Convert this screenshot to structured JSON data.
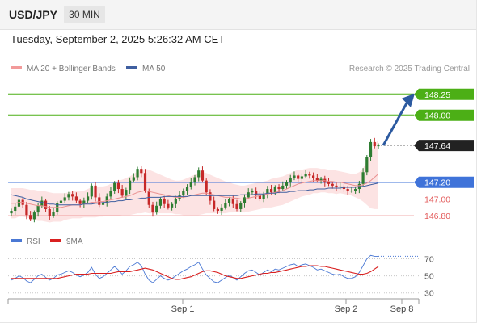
{
  "header": {
    "symbol": "USD/JPY",
    "interval": "30 MIN"
  },
  "timestamp": "Tuesday, September 2, 2025 5:26:32 AM CET",
  "legend": {
    "bollinger": "MA 20 + Bollinger Bands",
    "ma50": "MA 50",
    "credit": "Research © 2025 Trading Central"
  },
  "rsi_legend": {
    "rsi": "RSI",
    "ma": "9MA"
  },
  "colors": {
    "up": "#2e7d32",
    "down": "#c62828",
    "green_level": "#4caf16",
    "blue_level": "#3f73d9",
    "red_level": "#e35a5a",
    "band": "#fbdada",
    "ma50": "#3f5fa0",
    "ma20": "#e98f8f",
    "rsi": "#4a78d4",
    "rsi_ma": "#d92020",
    "current": "#222222",
    "arrow": "#2c5aa0"
  },
  "chart_data": [
    {
      "type": "candlestick",
      "title": "USD/JPY",
      "ylim": [
        146.6,
        148.45
      ],
      "x_ticks": [
        "Sep 1",
        "Sep 2",
        "Sep 8"
      ],
      "price_levels": [
        {
          "label": "148.25",
          "value": 148.25,
          "kind": "resistance"
        },
        {
          "label": "148.00",
          "value": 148.0,
          "kind": "resistance"
        },
        {
          "label": "147.64",
          "value": 147.64,
          "kind": "current"
        },
        {
          "label": "147.20",
          "value": 147.2,
          "kind": "pivot"
        },
        {
          "label": "147.00",
          "value": 147.0,
          "kind": "support"
        },
        {
          "label": "146.80",
          "value": 146.8,
          "kind": "support"
        }
      ],
      "closes": [
        146.86,
        146.91,
        146.99,
        146.93,
        146.81,
        146.76,
        146.84,
        146.92,
        146.98,
        146.88,
        146.8,
        146.85,
        146.95,
        146.98,
        147.02,
        147.06,
        147.03,
        146.98,
        146.94,
        146.98,
        147.03,
        147.16,
        147.02,
        146.93,
        146.96,
        147.03,
        147.1,
        147.19,
        147.12,
        147.04,
        147.11,
        147.22,
        147.26,
        147.36,
        147.31,
        147.1,
        146.93,
        146.84,
        146.92,
        147.0,
        146.94,
        146.9,
        146.94,
        147.0,
        147.05,
        147.1,
        147.14,
        147.2,
        147.26,
        147.34,
        147.22,
        147.08,
        146.98,
        146.88,
        146.86,
        146.9,
        146.95,
        147.0,
        146.94,
        146.88,
        146.95,
        147.02,
        147.08,
        147.1,
        147.05,
        147.0,
        147.06,
        147.12,
        147.08,
        147.14,
        147.12,
        147.16,
        147.2,
        147.25,
        147.28,
        147.24,
        147.27,
        147.3,
        147.28,
        147.25,
        147.22,
        147.24,
        147.2,
        147.18,
        147.16,
        147.14,
        147.15,
        147.12,
        147.1,
        147.1,
        147.12,
        147.18,
        147.32,
        147.5,
        147.68,
        147.63,
        147.64
      ],
      "ma20": [
        146.95,
        146.95,
        146.96,
        146.96,
        146.95,
        146.94,
        146.93,
        146.92,
        146.92,
        146.91,
        146.9,
        146.9,
        146.9,
        146.9,
        146.91,
        146.92,
        146.93,
        146.93,
        146.93,
        146.94,
        146.95,
        146.96,
        146.96,
        146.97,
        146.97,
        146.98,
        146.99,
        147.0,
        147.01,
        147.02,
        147.03,
        147.04,
        147.06,
        147.08,
        147.09,
        147.1,
        147.09,
        147.08,
        147.07,
        147.06,
        147.05,
        147.04,
        147.03,
        147.02,
        147.02,
        147.02,
        147.03,
        147.04,
        147.05,
        147.06,
        147.07,
        147.07,
        147.06,
        147.05,
        147.04,
        147.03,
        147.02,
        147.02,
        147.01,
        147.01,
        147.0,
        147.0,
        147.01,
        147.02,
        147.03,
        147.04,
        147.05,
        147.06,
        147.07,
        147.08,
        147.09,
        147.1,
        147.12,
        147.14,
        147.16,
        147.18,
        147.19,
        147.2,
        147.21,
        147.22,
        147.22,
        147.22,
        147.22,
        147.21,
        147.21,
        147.2,
        147.2,
        147.19,
        147.18,
        147.17,
        147.16,
        147.16,
        147.17,
        147.19,
        147.22,
        147.26,
        147.3
      ],
      "ma50": [
        147.05,
        147.04,
        147.03,
        147.02,
        147.0,
        146.99,
        146.98,
        146.97,
        146.96,
        146.95,
        146.94,
        146.94,
        146.93,
        146.93,
        146.93,
        146.93,
        146.93,
        146.93,
        146.93,
        146.94,
        146.94,
        146.94,
        146.95,
        146.95,
        146.96,
        146.96,
        146.97,
        146.97,
        146.98,
        146.98,
        146.99,
        146.99,
        147.0,
        147.0,
        147.01,
        147.01,
        147.02,
        147.02,
        147.02,
        147.02,
        147.03,
        147.03,
        147.03,
        147.03,
        147.03,
        147.03,
        147.03,
        147.04,
        147.04,
        147.04,
        147.04,
        147.04,
        147.04,
        147.04,
        147.04,
        147.04,
        147.04,
        147.04,
        147.04,
        147.04,
        147.05,
        147.05,
        147.05,
        147.05,
        147.06,
        147.06,
        147.06,
        147.07,
        147.07,
        147.07,
        147.08,
        147.08,
        147.08,
        147.09,
        147.09,
        147.1,
        147.1,
        147.1,
        147.11,
        147.11,
        147.12,
        147.12,
        147.12,
        147.13,
        147.13,
        147.13,
        147.13,
        147.14,
        147.14,
        147.14,
        147.14,
        147.15,
        147.15,
        147.16,
        147.17,
        147.18,
        147.19
      ],
      "band_width": [
        0.18,
        0.18,
        0.17,
        0.17,
        0.17,
        0.17,
        0.18,
        0.18,
        0.18,
        0.18,
        0.18,
        0.17,
        0.17,
        0.17,
        0.16,
        0.16,
        0.16,
        0.16,
        0.16,
        0.16,
        0.17,
        0.18,
        0.18,
        0.18,
        0.18,
        0.18,
        0.19,
        0.2,
        0.21,
        0.21,
        0.22,
        0.23,
        0.24,
        0.25,
        0.26,
        0.26,
        0.26,
        0.25,
        0.24,
        0.23,
        0.22,
        0.21,
        0.2,
        0.2,
        0.2,
        0.21,
        0.22,
        0.23,
        0.24,
        0.25,
        0.25,
        0.24,
        0.23,
        0.22,
        0.21,
        0.2,
        0.19,
        0.18,
        0.17,
        0.16,
        0.16,
        0.16,
        0.16,
        0.16,
        0.16,
        0.16,
        0.16,
        0.16,
        0.17,
        0.17,
        0.17,
        0.17,
        0.17,
        0.17,
        0.17,
        0.17,
        0.16,
        0.16,
        0.16,
        0.15,
        0.15,
        0.14,
        0.14,
        0.14,
        0.14,
        0.14,
        0.13,
        0.13,
        0.13,
        0.13,
        0.14,
        0.16,
        0.2,
        0.26,
        0.33,
        0.38,
        0.42
      ],
      "forecast": {
        "from": 147.64,
        "to": 148.25
      }
    },
    {
      "type": "line",
      "title": "RSI",
      "ylim": [
        25,
        80
      ],
      "y_ticks": [
        30,
        50,
        70
      ],
      "series": [
        {
          "name": "RSI",
          "values": [
            45,
            47,
            50,
            48,
            44,
            42,
            46,
            50,
            52,
            48,
            45,
            47,
            51,
            52,
            54,
            56,
            54,
            51,
            49,
            51,
            54,
            60,
            52,
            47,
            49,
            53,
            57,
            61,
            57,
            52,
            56,
            61,
            63,
            66,
            62,
            52,
            45,
            42,
            46,
            50,
            47,
            45,
            47,
            50,
            53,
            56,
            58,
            61,
            63,
            66,
            58,
            51,
            47,
            43,
            42,
            45,
            48,
            51,
            48,
            45,
            49,
            53,
            56,
            57,
            54,
            51,
            54,
            57,
            55,
            58,
            57,
            59,
            61,
            63,
            64,
            61,
            63,
            64,
            62,
            60,
            57,
            58,
            56,
            54,
            52,
            51,
            52,
            49,
            47,
            47,
            49,
            54,
            62,
            70,
            74,
            73,
            73
          ]
        },
        {
          "name": "9MA",
          "values": [
            47,
            47,
            47,
            47,
            47,
            47,
            47,
            47,
            47,
            47,
            47,
            47,
            47,
            48,
            49,
            50,
            51,
            52,
            52,
            52,
            52,
            53,
            53,
            53,
            53,
            53,
            53,
            54,
            55,
            55,
            55,
            55,
            56,
            57,
            58,
            59,
            58,
            57,
            55,
            53,
            51,
            49,
            47,
            46,
            46,
            47,
            48,
            49,
            51,
            53,
            55,
            56,
            56,
            55,
            54,
            52,
            50,
            49,
            48,
            47,
            47,
            48,
            49,
            50,
            51,
            52,
            53,
            53,
            54,
            54,
            55,
            56,
            57,
            58,
            59,
            60,
            61,
            61,
            62,
            62,
            62,
            61,
            61,
            60,
            59,
            58,
            57,
            56,
            55,
            54,
            53,
            52,
            52,
            53,
            55,
            58,
            61
          ]
        }
      ]
    }
  ]
}
